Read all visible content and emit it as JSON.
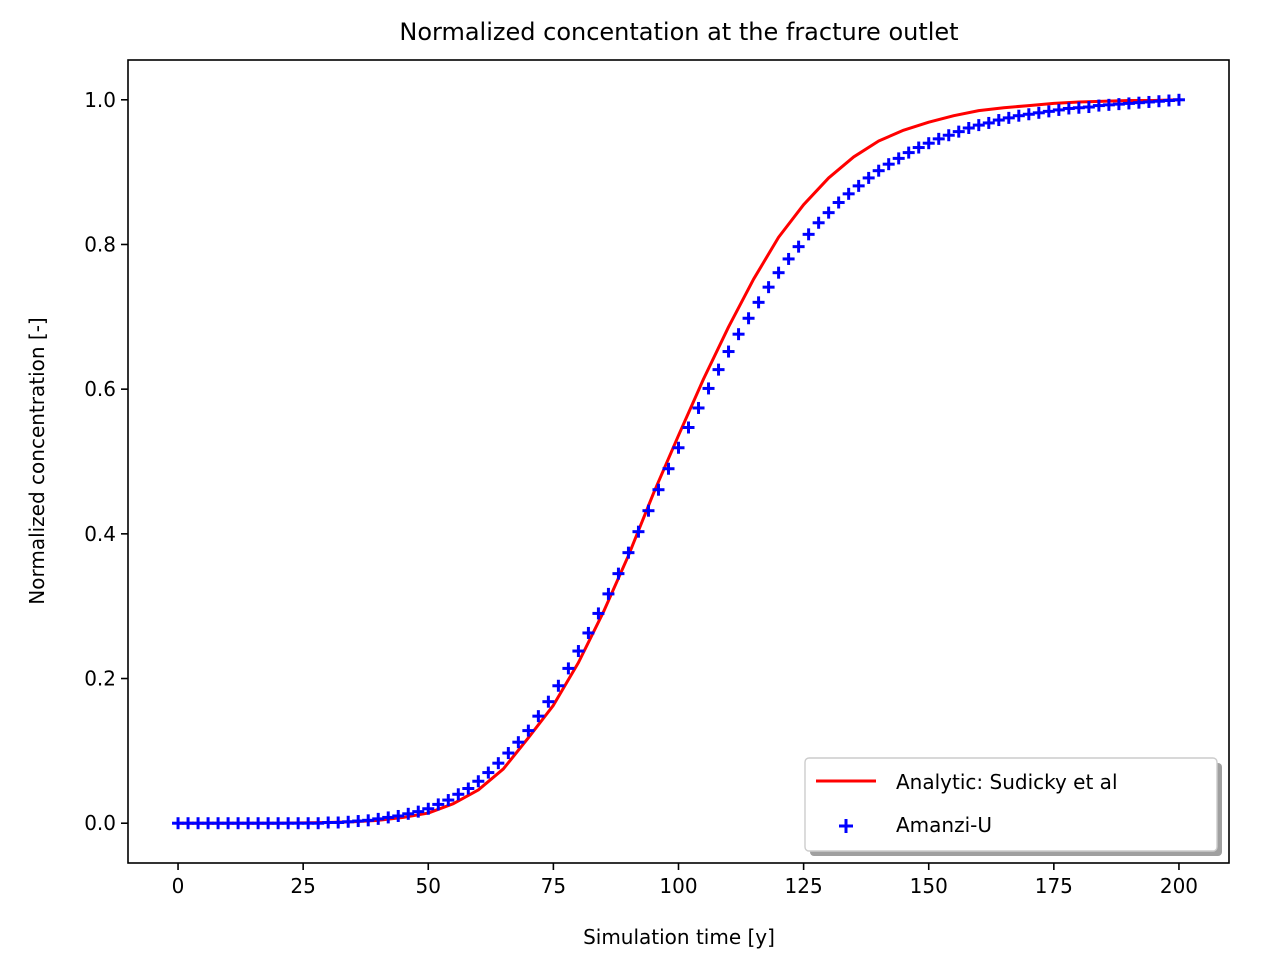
{
  "chart_data": {
    "type": "line",
    "title": "Normalized concentation at the fracture outlet",
    "xlabel": "Simulation time [y]",
    "ylabel": "Normalized concentration [-]",
    "xlim": [
      -10,
      210
    ],
    "ylim": [
      -0.055,
      1.055
    ],
    "xticks": [
      0,
      25,
      50,
      75,
      100,
      125,
      150,
      175,
      200
    ],
    "xtick_labels": [
      "0",
      "25",
      "50",
      "75",
      "100",
      "125",
      "150",
      "175",
      "200"
    ],
    "yticks": [
      0.0,
      0.2,
      0.4,
      0.6,
      0.8,
      1.0
    ],
    "ytick_labels": [
      "0.0",
      "0.2",
      "0.4",
      "0.6",
      "0.8",
      "1.0"
    ],
    "grid": false,
    "legend_position": "lower-right",
    "colors": {
      "analytic": "#ff0000",
      "amanzi": "#0000ff"
    },
    "series": [
      {
        "name": "Analytic: Sudicky et al",
        "kind": "line",
        "x": [
          0,
          10,
          20,
          30,
          35,
          40,
          45,
          50,
          55,
          60,
          65,
          70,
          75,
          80,
          85,
          90,
          95,
          100,
          105,
          110,
          115,
          120,
          125,
          130,
          135,
          140,
          145,
          150,
          155,
          160,
          165,
          170,
          175,
          180,
          185,
          190,
          195,
          200
        ],
        "y": [
          0.0,
          0.0,
          0.0,
          0.001,
          0.002,
          0.004,
          0.008,
          0.014,
          0.027,
          0.046,
          0.075,
          0.118,
          0.163,
          0.222,
          0.292,
          0.37,
          0.456,
          0.536,
          0.614,
          0.686,
          0.752,
          0.81,
          0.855,
          0.892,
          0.921,
          0.943,
          0.958,
          0.969,
          0.978,
          0.985,
          0.989,
          0.992,
          0.995,
          0.997,
          0.998,
          0.999,
          0.999,
          1.0
        ]
      },
      {
        "name": "Amanzi-U",
        "kind": "scatter",
        "marker": "+",
        "x": [
          0,
          2,
          4,
          6,
          8,
          10,
          12,
          14,
          16,
          18,
          20,
          22,
          24,
          26,
          28,
          30,
          32,
          34,
          36,
          38,
          40,
          42,
          44,
          46,
          48,
          50,
          52,
          54,
          56,
          58,
          60,
          62,
          64,
          66,
          68,
          70,
          72,
          74,
          76,
          78,
          80,
          82,
          84,
          86,
          88,
          90,
          92,
          94,
          96,
          98,
          100,
          102,
          104,
          106,
          108,
          110,
          112,
          114,
          116,
          118,
          120,
          122,
          124,
          126,
          128,
          130,
          132,
          134,
          136,
          138,
          140,
          142,
          144,
          146,
          148,
          150,
          152,
          154,
          156,
          158,
          160,
          162,
          164,
          166,
          168,
          170,
          172,
          174,
          176,
          178,
          180,
          182,
          184,
          186,
          188,
          190,
          192,
          194,
          196,
          198,
          200
        ],
        "y": [
          0.0,
          0.0,
          0.0,
          0.0,
          0.0,
          0.0,
          0.0,
          0.0,
          0.0,
          0.0,
          0.0,
          0.0,
          0.0,
          0.0,
          0.0,
          0.001,
          0.001,
          0.002,
          0.003,
          0.004,
          0.006,
          0.008,
          0.01,
          0.013,
          0.016,
          0.02,
          0.026,
          0.032,
          0.04,
          0.048,
          0.058,
          0.07,
          0.083,
          0.097,
          0.112,
          0.128,
          0.148,
          0.168,
          0.19,
          0.214,
          0.238,
          0.263,
          0.29,
          0.317,
          0.345,
          0.374,
          0.403,
          0.432,
          0.461,
          0.49,
          0.519,
          0.547,
          0.574,
          0.601,
          0.627,
          0.652,
          0.676,
          0.698,
          0.72,
          0.741,
          0.761,
          0.78,
          0.797,
          0.814,
          0.83,
          0.844,
          0.858,
          0.87,
          0.881,
          0.892,
          0.902,
          0.911,
          0.919,
          0.927,
          0.934,
          0.94,
          0.946,
          0.951,
          0.956,
          0.961,
          0.965,
          0.968,
          0.972,
          0.975,
          0.978,
          0.98,
          0.982,
          0.984,
          0.986,
          0.988,
          0.989,
          0.99,
          0.992,
          0.993,
          0.994,
          0.995,
          0.996,
          0.997,
          0.998,
          0.999,
          1.0
        ]
      }
    ]
  }
}
